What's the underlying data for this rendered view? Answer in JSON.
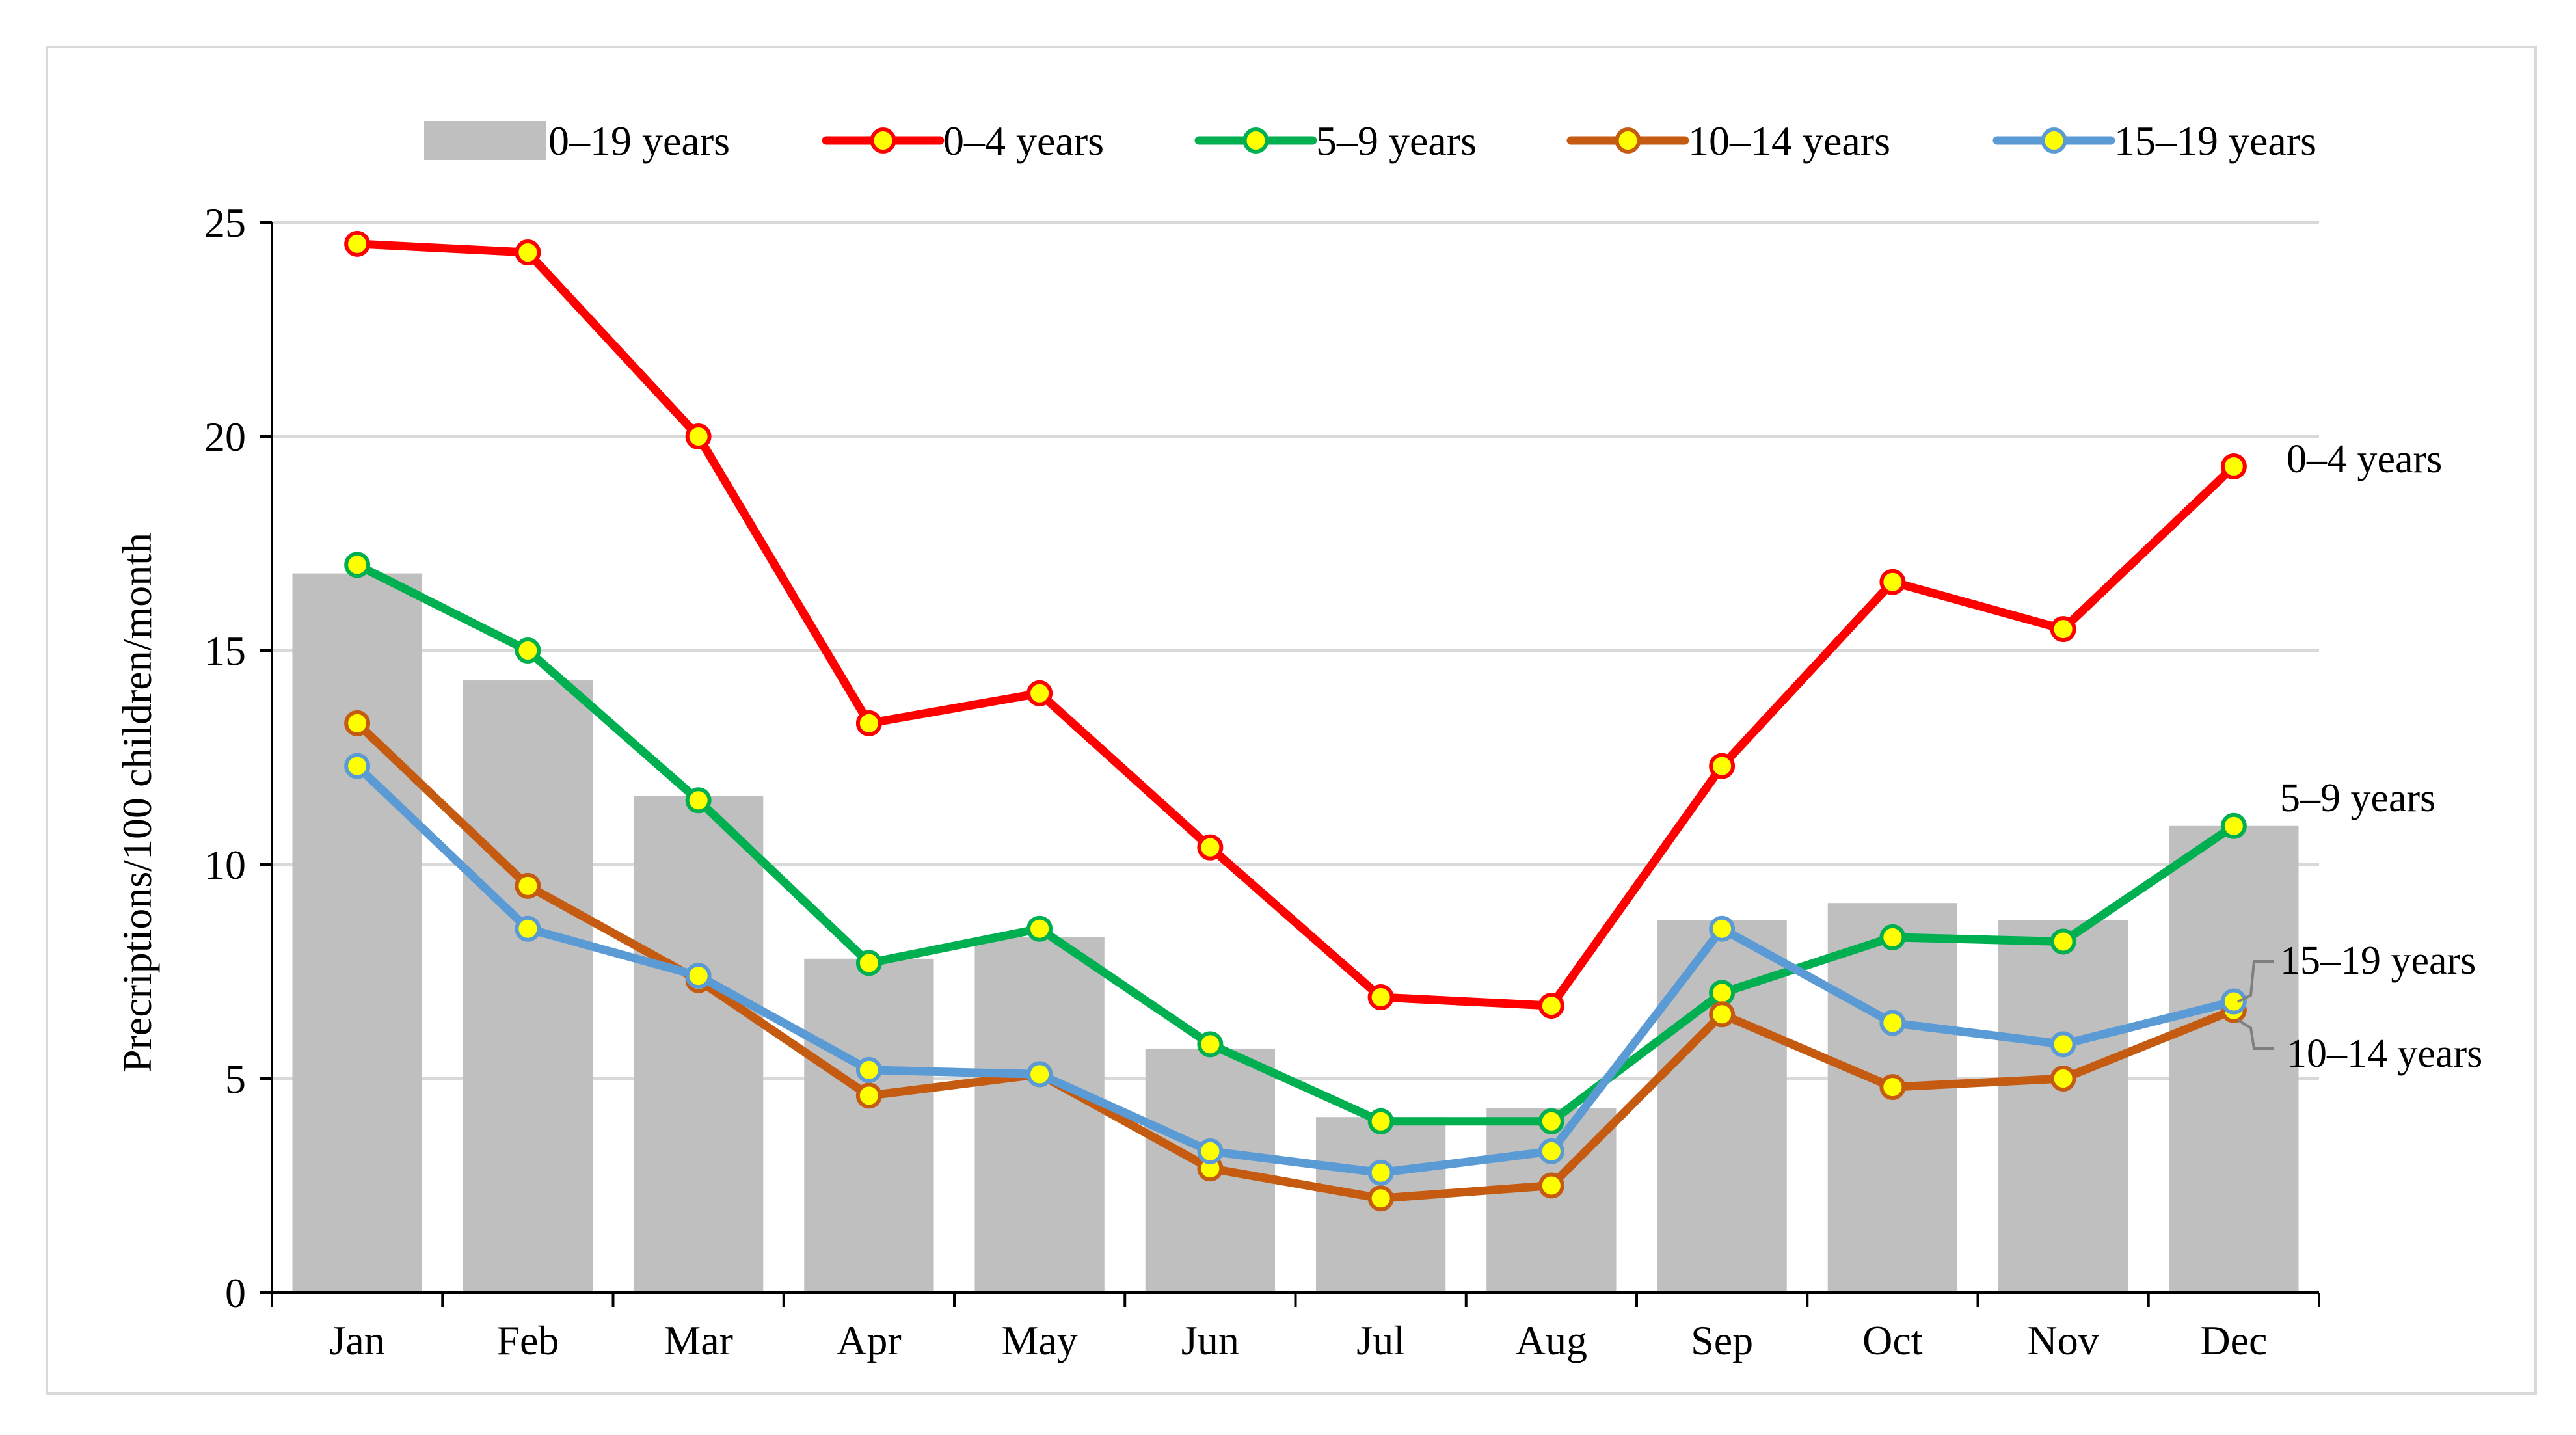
{
  "chart_data": {
    "type": "bar+line",
    "title": "",
    "xlabel": "",
    "ylabel": "Precriptions/100 children/month",
    "ylim": [
      0,
      25
    ],
    "yticks": [
      0,
      5,
      10,
      15,
      20,
      25
    ],
    "grid": true,
    "legend_position": "top",
    "categories": [
      "Jan",
      "Feb",
      "Mar",
      "Apr",
      "May",
      "Jun",
      "Jul",
      "Aug",
      "Sep",
      "Oct",
      "Nov",
      "Dec"
    ],
    "bars": {
      "name": "0–19 years",
      "color": "#bfbfbf",
      "values": [
        16.8,
        14.3,
        11.6,
        7.8,
        8.3,
        5.7,
        4.1,
        4.3,
        8.7,
        9.1,
        8.7,
        10.9
      ]
    },
    "series": [
      {
        "name": "0–4 years",
        "color": "#ff0000",
        "values": [
          24.5,
          24.3,
          20.0,
          13.3,
          14.0,
          10.4,
          6.9,
          6.7,
          12.3,
          16.6,
          15.5,
          19.3
        ],
        "end_label": "0–4 years"
      },
      {
        "name": "5–9 years",
        "color": "#00b050",
        "values": [
          17.0,
          15.0,
          11.5,
          7.7,
          8.5,
          5.8,
          4.0,
          4.0,
          7.0,
          8.3,
          8.2,
          10.9
        ],
        "end_label": "5–9 years"
      },
      {
        "name": "10–14 years",
        "color": "#c55a11",
        "values": [
          13.3,
          9.5,
          7.3,
          4.6,
          5.1,
          2.9,
          2.2,
          2.5,
          6.5,
          4.8,
          5.0,
          6.6
        ],
        "end_label": "10–14 years"
      },
      {
        "name": "15–19 years",
        "color": "#5b9bd5",
        "values": [
          12.3,
          8.5,
          7.4,
          5.2,
          5.1,
          3.3,
          2.8,
          3.3,
          8.5,
          6.3,
          5.8,
          6.8
        ],
        "end_label": "15–19 years"
      }
    ],
    "marker_fill": "#ffff00"
  }
}
